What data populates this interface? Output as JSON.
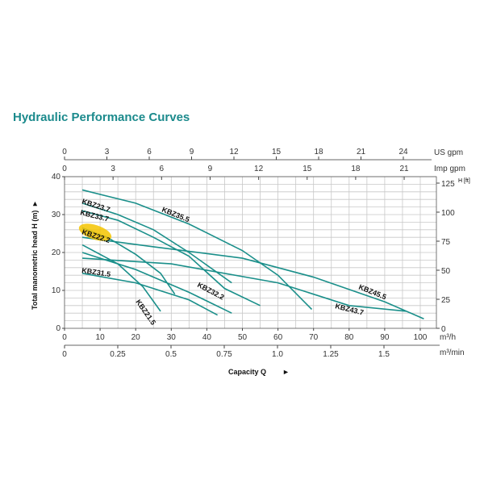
{
  "chart_data": {
    "type": "line",
    "title": "Hydraulic Performance Curves",
    "xlabel": "Capacity Q",
    "ylabel": "Total manometric head H (m)",
    "y2label": "H [ft]",
    "xlim": [
      0,
      105
    ],
    "ylim": [
      0,
      40
    ],
    "grid": true,
    "x_unit": "m³/h",
    "x_ticks": [
      0,
      10,
      20,
      30,
      40,
      50,
      60,
      70,
      80,
      90,
      100
    ],
    "y_ticks": [
      0,
      10,
      20,
      30,
      40
    ],
    "y2_ticks": [
      0,
      25,
      50,
      75,
      100,
      125
    ],
    "x_min_unit": "m³/min",
    "x_min_ticks": [
      "0",
      "0.25",
      "0.5",
      "0.75",
      "1.0",
      "1.25",
      "1.5"
    ],
    "us_gpm_unit": "US gpm",
    "us_gpm_ticks": [
      0,
      3,
      6,
      9,
      12,
      15,
      18,
      21,
      24
    ],
    "imp_gpm_unit": "Imp gpm",
    "imp_gpm_ticks": [
      0,
      3,
      6,
      9,
      12,
      15,
      18,
      21
    ],
    "highlighted_series": "KBZ22.2",
    "highlight_color": "#f5c400",
    "line_color": "#1a8f8a",
    "series": [
      {
        "name": "KBZ35.5",
        "points": [
          [
            5,
            36.5
          ],
          [
            20,
            33
          ],
          [
            35,
            27.5
          ],
          [
            50,
            20.5
          ],
          [
            60,
            14
          ],
          [
            69.5,
            5
          ]
        ]
      },
      {
        "name": "KBZ23.7",
        "points": [
          [
            5,
            33
          ],
          [
            15,
            30
          ],
          [
            25,
            26
          ],
          [
            35,
            20
          ],
          [
            47,
            12
          ]
        ]
      },
      {
        "name": "KBZ33.7",
        "points": [
          [
            5,
            31
          ],
          [
            15,
            28.5
          ],
          [
            25,
            24
          ],
          [
            35,
            19
          ],
          [
            45,
            10.5
          ],
          [
            55,
            6
          ]
        ]
      },
      {
        "name": "KBZ22.2",
        "points": [
          [
            5,
            26.5
          ],
          [
            12,
            24
          ],
          [
            20,
            19.5
          ],
          [
            27,
            14.5
          ],
          [
            31,
            9
          ]
        ]
      },
      {
        "name": "KBZ45.5",
        "points": [
          [
            5,
            24
          ],
          [
            25,
            21.5
          ],
          [
            50,
            18.5
          ],
          [
            70,
            13.5
          ],
          [
            90,
            7
          ],
          [
            101,
            2.5
          ]
        ]
      },
      {
        "name": "KBZ21.5",
        "points": [
          [
            5,
            22
          ],
          [
            15,
            17
          ],
          [
            22,
            11
          ],
          [
            27,
            4.5
          ]
        ]
      },
      {
        "name": "KBZ32.2",
        "points": [
          [
            5,
            20
          ],
          [
            20,
            15.5
          ],
          [
            35,
            9.5
          ],
          [
            47,
            4
          ]
        ]
      },
      {
        "name": "KBZ43.7",
        "points": [
          [
            5,
            18.5
          ],
          [
            30,
            17
          ],
          [
            60,
            12
          ],
          [
            80,
            6
          ],
          [
            96,
            4.5
          ]
        ]
      },
      {
        "name": "KBZ31.5",
        "points": [
          [
            5,
            14.5
          ],
          [
            20,
            12
          ],
          [
            35,
            7.5
          ],
          [
            43,
            3.5
          ]
        ]
      }
    ]
  }
}
